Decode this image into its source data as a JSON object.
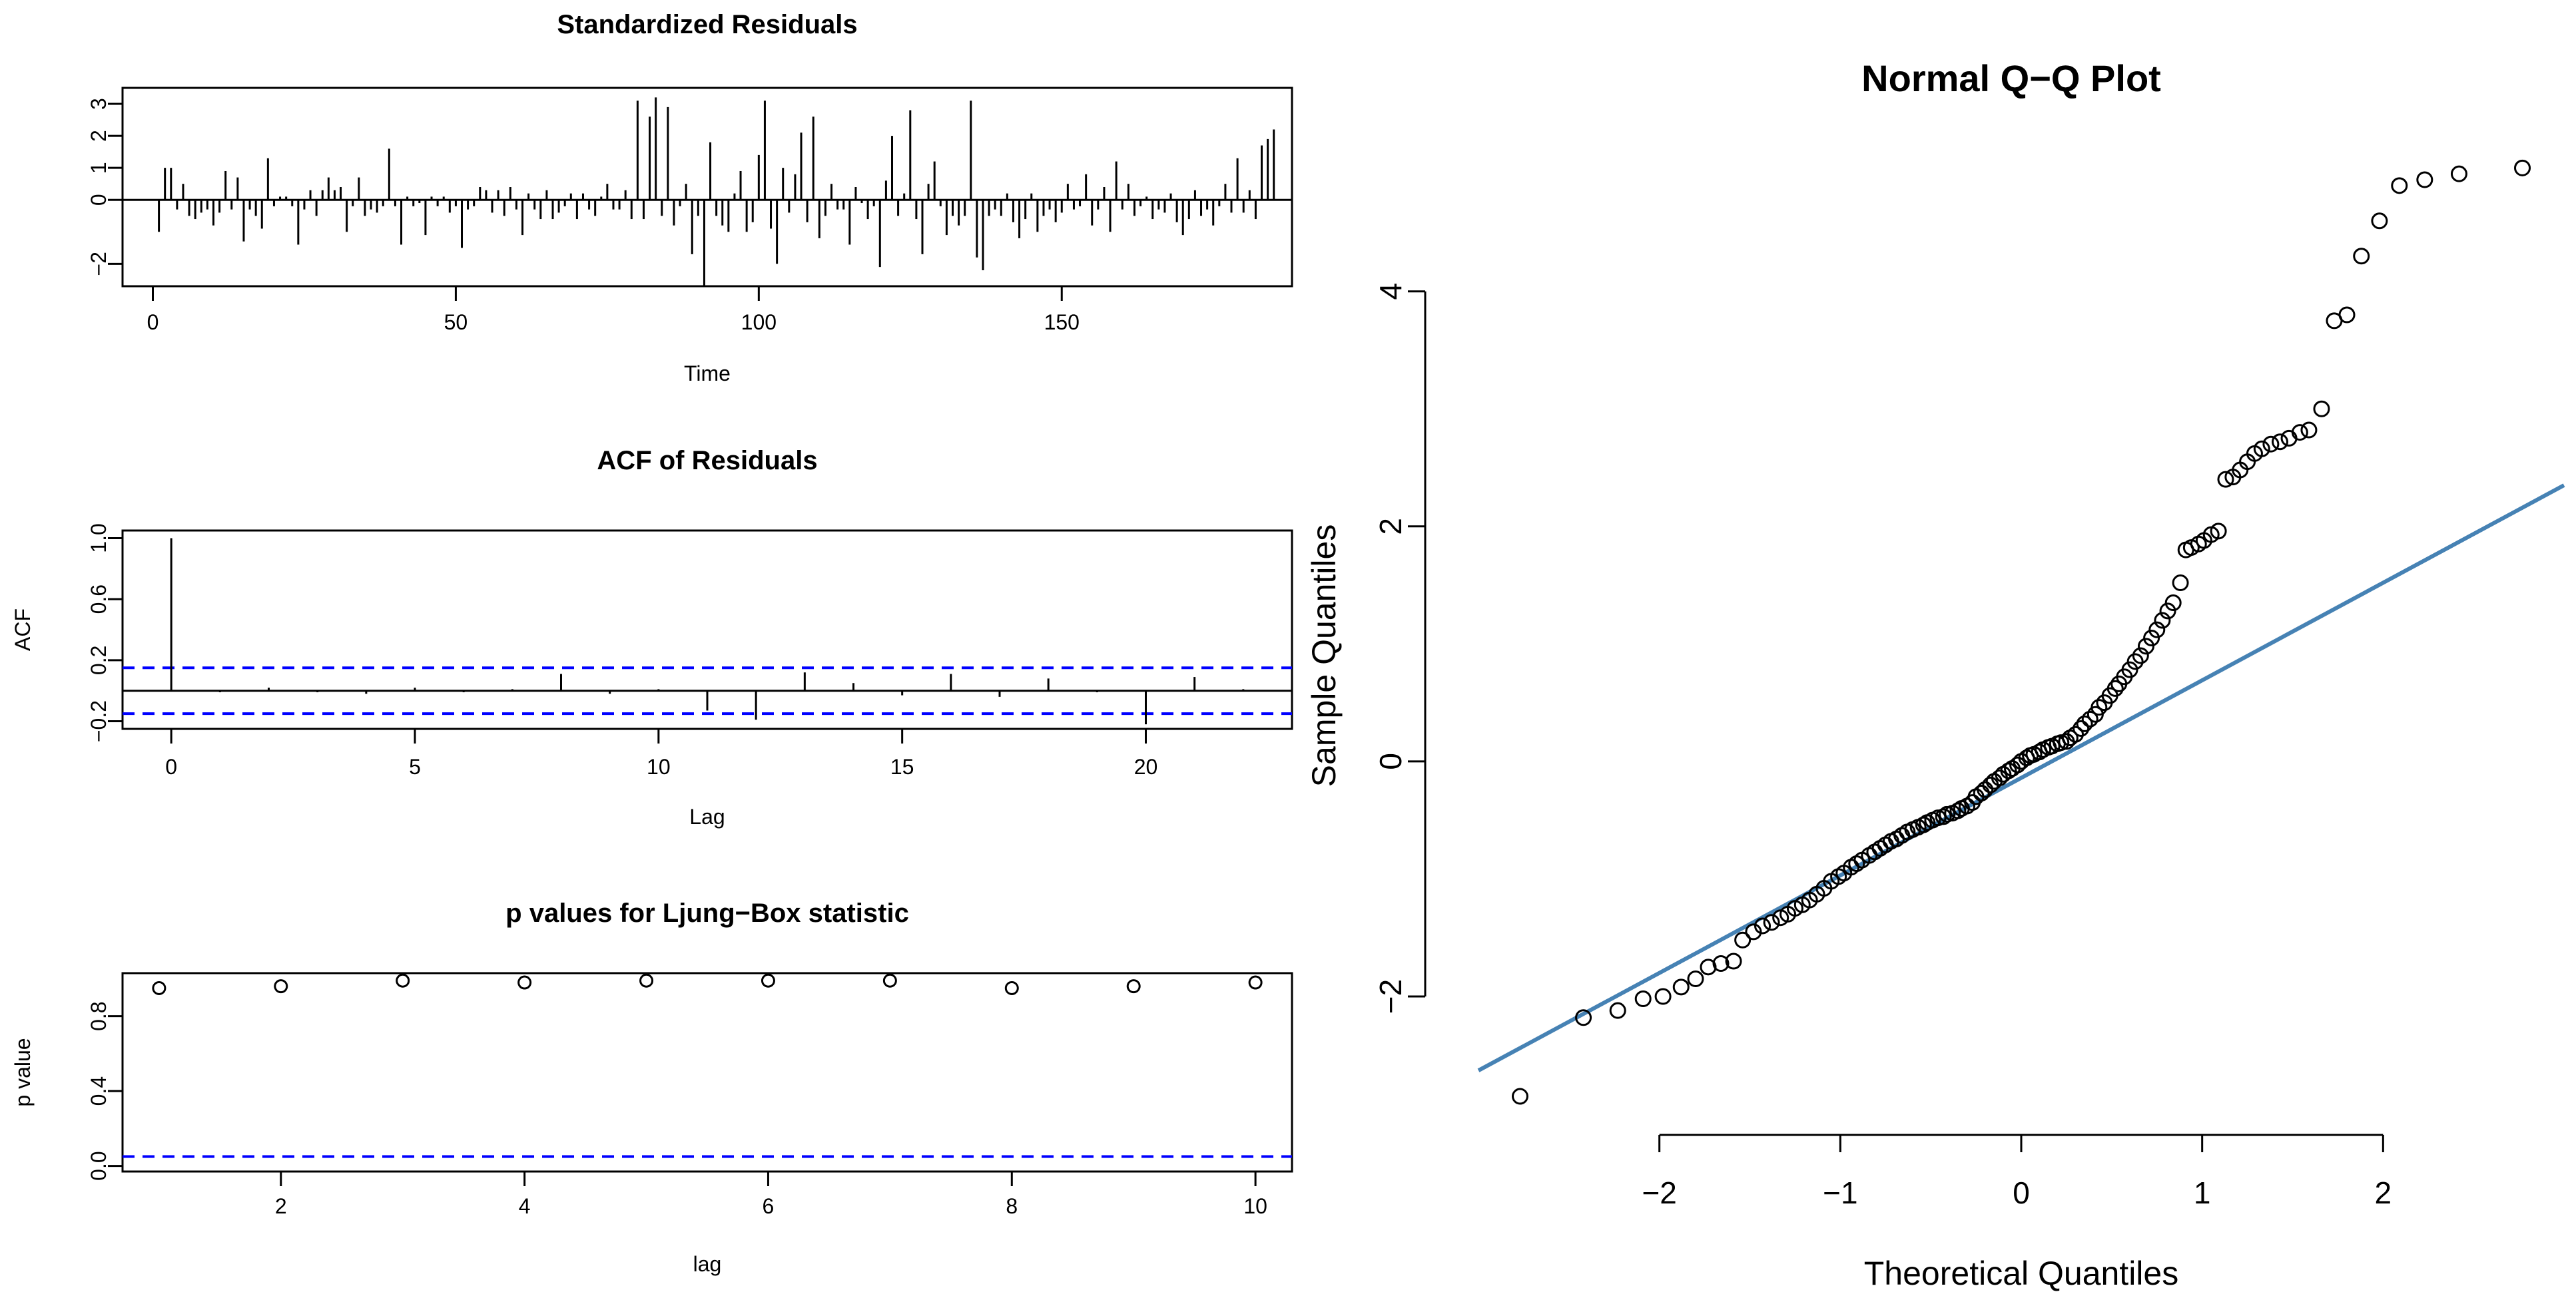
{
  "colors": {
    "ink": "#000000",
    "ref_line": "#0000ff",
    "qq_line": "#4682b4",
    "background": "#ffffff"
  },
  "chart_data": [
    {
      "id": "standardized-residuals",
      "type": "line",
      "subtype": "histogram-spikes",
      "title": "Standardized Residuals",
      "xlabel": "Time",
      "ylabel": "",
      "xlim": [
        -5,
        188
      ],
      "ylim": [
        -2.7,
        3.5
      ],
      "xticks": [
        0,
        50,
        100,
        150
      ],
      "yticks": [
        -2,
        0,
        1,
        2,
        3
      ],
      "ytick_labels": [
        "−2",
        "0",
        "1",
        "2",
        "3"
      ],
      "x_start": 1,
      "values": [
        -1.0,
        1.0,
        1.0,
        -0.3,
        0.5,
        -0.5,
        -0.6,
        -0.4,
        -0.3,
        -0.8,
        -0.4,
        0.9,
        -0.3,
        0.7,
        -1.3,
        -0.3,
        -0.5,
        -0.9,
        1.3,
        -0.2,
        0.1,
        0.1,
        -0.2,
        -1.4,
        -0.3,
        0.3,
        -0.5,
        0.3,
        0.7,
        0.3,
        0.4,
        -1.0,
        -0.2,
        0.7,
        -0.5,
        -0.3,
        -0.4,
        -0.2,
        1.6,
        -0.2,
        -1.4,
        0.1,
        -0.2,
        -0.1,
        -1.1,
        0.1,
        -0.2,
        0.1,
        -0.4,
        -0.2,
        -1.5,
        -0.3,
        -0.2,
        0.4,
        0.3,
        -0.4,
        0.3,
        -0.5,
        0.4,
        -0.3,
        -1.1,
        0.2,
        -0.3,
        -0.6,
        0.3,
        -0.6,
        -0.4,
        -0.2,
        0.2,
        -0.6,
        0.2,
        -0.3,
        -0.5,
        0.1,
        0.5,
        -0.3,
        -0.3,
        0.3,
        -0.6,
        3.1,
        -0.6,
        2.6,
        3.2,
        -0.5,
        2.9,
        -0.8,
        -0.2,
        0.5,
        -1.7,
        -0.5,
        -2.7,
        1.8,
        -0.5,
        -0.8,
        -1.0,
        0.2,
        0.9,
        -1.0,
        -0.7,
        1.4,
        3.1,
        -0.9,
        -2.0,
        1.0,
        -0.4,
        0.8,
        2.1,
        -0.7,
        2.6,
        -1.2,
        -0.5,
        0.5,
        -0.3,
        -0.3,
        -1.4,
        0.4,
        -0.1,
        -0.6,
        -0.2,
        -2.1,
        0.6,
        2.0,
        -0.5,
        0.2,
        2.8,
        -0.6,
        -1.7,
        0.5,
        1.2,
        -0.2,
        -1.1,
        -0.5,
        -0.8,
        -0.5,
        3.1,
        -1.8,
        -2.2,
        -0.5,
        -0.3,
        -0.5,
        0.2,
        -0.7,
        -1.2,
        -0.6,
        0.2,
        -1.0,
        -0.5,
        -0.3,
        -0.7,
        -0.4,
        0.5,
        -0.3,
        -0.2,
        0.8,
        -0.8,
        -0.3,
        0.4,
        -1.0,
        1.2,
        -0.3,
        0.5,
        -0.5,
        -0.2,
        0.1,
        -0.6,
        -0.3,
        -0.4,
        0.2,
        -0.7,
        -1.1,
        -0.6,
        0.3,
        -0.5,
        -0.3,
        -0.8,
        -0.2,
        0.5,
        -0.4,
        1.3,
        -0.4,
        0.3,
        -0.6,
        1.7,
        1.9,
        2.2
      ]
    },
    {
      "id": "acf-of-residuals",
      "type": "bar",
      "subtype": "acf-spikes",
      "title": "ACF of Residuals",
      "xlabel": "Lag",
      "ylabel": "ACF",
      "xlim": [
        -1,
        23
      ],
      "ylim": [
        -0.25,
        1.05
      ],
      "xticks": [
        0,
        5,
        10,
        15,
        20
      ],
      "yticks": [
        -0.2,
        0.2,
        0.6,
        1.0
      ],
      "ytick_labels": [
        "−0.2",
        "0.2",
        "0.6",
        "1.0"
      ],
      "lags": [
        0,
        1,
        2,
        3,
        4,
        5,
        6,
        7,
        8,
        9,
        10,
        11,
        12,
        13,
        14,
        15,
        16,
        17,
        18,
        19,
        20,
        21,
        22
      ],
      "values": [
        1.0,
        -0.01,
        0.02,
        -0.01,
        -0.02,
        0.02,
        -0.01,
        0.01,
        0.11,
        -0.02,
        0.01,
        -0.13,
        -0.19,
        0.12,
        0.05,
        -0.03,
        0.11,
        -0.04,
        0.08,
        -0.01,
        -0.22,
        0.09,
        0.01
      ],
      "confidence_band": [
        -0.15,
        0.15
      ]
    },
    {
      "id": "ljung-box-pvalues",
      "type": "scatter",
      "title": "p values for Ljung−Box statistic",
      "xlabel": "lag",
      "ylabel": "p value",
      "xlim": [
        0.7,
        10.3
      ],
      "ylim": [
        -0.03,
        1.03
      ],
      "xticks": [
        2,
        4,
        6,
        8,
        10
      ],
      "yticks": [
        0.0,
        0.4,
        0.8
      ],
      "ytick_labels": [
        "0.0",
        "0.4",
        "0.8"
      ],
      "x": [
        1,
        2,
        3,
        4,
        5,
        6,
        7,
        8,
        9,
        10
      ],
      "values": [
        0.95,
        0.96,
        0.99,
        0.98,
        0.99,
        0.99,
        0.99,
        0.95,
        0.96,
        0.98
      ],
      "reference_line": 0.05
    },
    {
      "id": "normal-qq-plot",
      "type": "scatter",
      "subtype": "qq",
      "title": "Normal Q−Q Plot",
      "xlabel": "Theoretical Quantiles",
      "ylabel": "Sample Quantiles",
      "xlim": [
        -3.0,
        3.0
      ],
      "ylim": [
        -3.15,
        4.95
      ],
      "xticks": [
        -2,
        -1,
        0,
        1,
        2
      ],
      "xtick_labels": [
        "−2",
        "−1",
        "0",
        "1",
        "2"
      ],
      "yticks": [
        -2,
        0,
        2,
        4
      ],
      "ytick_labels": [
        "−2",
        "0",
        "2",
        "4"
      ],
      "reference_line": {
        "intercept": -0.14,
        "slope": 0.83
      },
      "x": [
        -2.77,
        -2.42,
        -2.23,
        -2.09,
        -1.98,
        -1.88,
        -1.8,
        -1.73,
        -1.66,
        -1.59,
        -1.54,
        -1.48,
        -1.43,
        -1.38,
        -1.33,
        -1.29,
        -1.25,
        -1.21,
        -1.17,
        -1.13,
        -1.09,
        -1.05,
        -1.01,
        -0.98,
        -0.94,
        -0.91,
        -0.88,
        -0.84,
        -0.81,
        -0.78,
        -0.75,
        -0.72,
        -0.69,
        -0.66,
        -0.63,
        -0.6,
        -0.57,
        -0.54,
        -0.52,
        -0.49,
        -0.46,
        -0.43,
        -0.41,
        -0.38,
        -0.35,
        -0.33,
        -0.3,
        -0.27,
        -0.25,
        -0.22,
        -0.2,
        -0.17,
        -0.15,
        -0.12,
        -0.1,
        -0.07,
        -0.05,
        -0.02,
        0.0,
        0.03,
        0.05,
        0.07,
        0.1,
        0.12,
        0.15,
        0.17,
        0.2,
        0.22,
        0.25,
        0.27,
        0.3,
        0.33,
        0.35,
        0.38,
        0.41,
        0.43,
        0.46,
        0.49,
        0.52,
        0.54,
        0.57,
        0.6,
        0.63,
        0.66,
        0.69,
        0.72,
        0.75,
        0.78,
        0.81,
        0.84,
        0.88,
        0.91,
        0.94,
        0.98,
        1.01,
        1.05,
        1.09,
        1.13,
        1.17,
        1.21,
        1.25,
        1.29,
        1.33,
        1.38,
        1.43,
        1.48,
        1.54,
        1.59,
        1.66,
        1.73,
        1.8,
        1.88,
        1.98,
        2.09,
        2.23,
        2.42,
        2.77
      ],
      "values": [
        -2.85,
        -2.18,
        -2.12,
        -2.02,
        -2.0,
        -1.92,
        -1.85,
        -1.75,
        -1.72,
        -1.7,
        -1.52,
        -1.45,
        -1.4,
        -1.37,
        -1.33,
        -1.3,
        -1.25,
        -1.22,
        -1.18,
        -1.13,
        -1.08,
        -1.02,
        -0.98,
        -0.95,
        -0.9,
        -0.87,
        -0.84,
        -0.8,
        -0.77,
        -0.74,
        -0.71,
        -0.68,
        -0.66,
        -0.63,
        -0.6,
        -0.58,
        -0.56,
        -0.54,
        -0.52,
        -0.5,
        -0.48,
        -0.47,
        -0.45,
        -0.44,
        -0.42,
        -0.4,
        -0.38,
        -0.35,
        -0.3,
        -0.27,
        -0.24,
        -0.2,
        -0.17,
        -0.14,
        -0.11,
        -0.08,
        -0.06,
        -0.03,
        0.0,
        0.03,
        0.05,
        0.06,
        0.08,
        0.1,
        0.12,
        0.13,
        0.15,
        0.16,
        0.17,
        0.2,
        0.23,
        0.28,
        0.32,
        0.36,
        0.4,
        0.46,
        0.5,
        0.56,
        0.62,
        0.66,
        0.72,
        0.78,
        0.85,
        0.9,
        0.98,
        1.05,
        1.12,
        1.2,
        1.28,
        1.35,
        1.52,
        1.8,
        1.82,
        1.85,
        1.88,
        1.93,
        1.96,
        2.4,
        2.42,
        2.48,
        2.55,
        2.62,
        2.66,
        2.7,
        2.72,
        2.75,
        2.8,
        2.82,
        3.0,
        3.75,
        3.8,
        4.3,
        4.6,
        4.9,
        4.95,
        5.0,
        5.05
      ]
    }
  ]
}
